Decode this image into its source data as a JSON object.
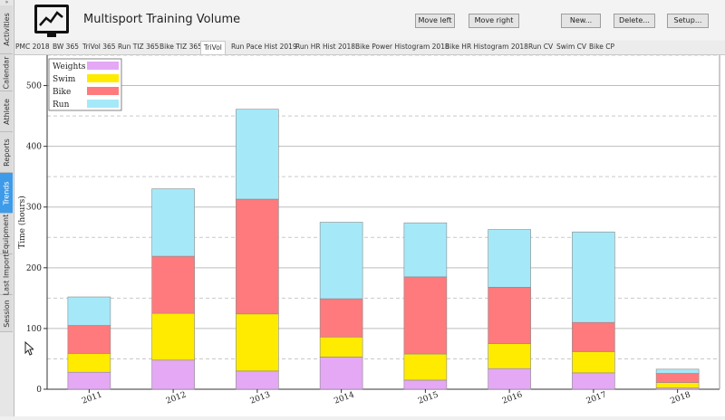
{
  "app": {
    "title": "Multisport Training Volume"
  },
  "sidebar": {
    "collapse_glyph": "»",
    "items": [
      {
        "label": "Activities",
        "active": false
      },
      {
        "label": "Calendar",
        "active": false
      },
      {
        "label": "Athlete",
        "active": false
      },
      {
        "label": "Reports",
        "active": false
      },
      {
        "label": "Trends",
        "active": true
      },
      {
        "label": "Equipment",
        "active": false
      },
      {
        "label": "Last Import",
        "active": false
      },
      {
        "label": "Session",
        "active": false
      }
    ]
  },
  "toolbar": {
    "move_left": "Move left",
    "move_right": "Move right",
    "new": "New...",
    "delete": "Delete...",
    "setup": "Setup..."
  },
  "tabs": [
    {
      "label": "PMC 2018",
      "active": false
    },
    {
      "label": "BW 365",
      "active": false
    },
    {
      "label": "TriVol 365",
      "active": false
    },
    {
      "label": "Run TIZ 365",
      "active": false
    },
    {
      "label": "Bike TIZ 365",
      "active": false
    },
    {
      "label": "TriVol",
      "active": true
    },
    {
      "label": "Run Pace Hist 2019",
      "active": false
    },
    {
      "label": "Run HR Hist 2018",
      "active": false
    },
    {
      "label": "Bike Power Histogram 2018",
      "active": false
    },
    {
      "label": "Bike HR Histogram 2018",
      "active": false
    },
    {
      "label": "Run CV",
      "active": false
    },
    {
      "label": "Swim CV",
      "active": false
    },
    {
      "label": "Bike CP",
      "active": false
    }
  ],
  "chart_data": {
    "type": "bar",
    "stacked": true,
    "categories": [
      "2011",
      "2012",
      "2013",
      "2014",
      "2015",
      "2016",
      "2017",
      "2018"
    ],
    "series": [
      {
        "name": "Weights",
        "color": "#e4a8f5",
        "values": [
          28,
          48,
          30,
          53,
          15,
          34,
          27,
          2
        ]
      },
      {
        "name": "Swim",
        "color": "#ffeb00",
        "values": [
          31,
          77,
          94,
          33,
          43,
          41,
          35,
          9
        ]
      },
      {
        "name": "Bike",
        "color": "#ff7a7c",
        "values": [
          46,
          94,
          189,
          63,
          127,
          93,
          48,
          15
        ]
      },
      {
        "name": "Run",
        "color": "#a5e9f9",
        "values": [
          47,
          111,
          148,
          126,
          89,
          95,
          149,
          7
        ]
      }
    ],
    "ylabel": "Time (hours)",
    "ylim": [
      0,
      550
    ],
    "yticks": [
      0,
      100,
      200,
      300,
      400,
      500
    ],
    "grid": true,
    "legend": "top-left"
  }
}
